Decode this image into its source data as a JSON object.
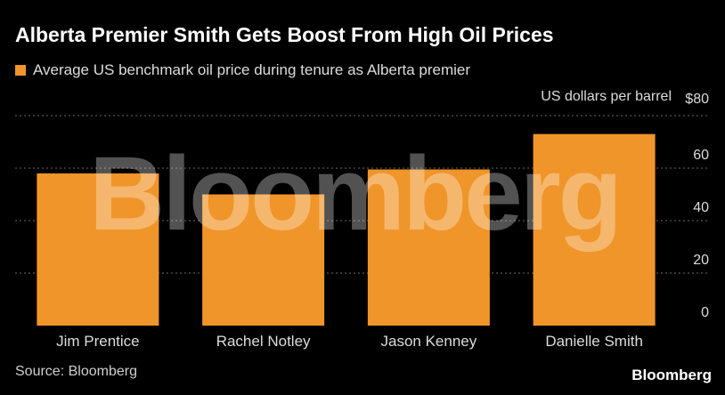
{
  "chart_data": {
    "type": "bar",
    "title": "Alberta Premier Smith Gets Boost From High Oil Prices",
    "unit_label": "US dollars per barrel",
    "categories": [
      "Jim Prentice",
      "Rachel Notley",
      "Jason Kenney",
      "Danielle Smith"
    ],
    "series": [
      {
        "name": "Average US benchmark oil price during tenure as Alberta premier",
        "values": [
          58,
          50,
          59.5,
          73
        ]
      }
    ],
    "ylim": [
      0,
      80
    ],
    "yticks": [
      "0",
      "20",
      "40",
      "60",
      "$80"
    ],
    "grid": true,
    "legend_position": "top-left"
  },
  "source": "Source: Bloomberg",
  "brand": "Bloomberg",
  "watermark": "Bloomberg",
  "colors": {
    "background": "#000000",
    "bar": "#f0952a",
    "gridline": "#6a6a6a",
    "text": "#ffffff"
  }
}
